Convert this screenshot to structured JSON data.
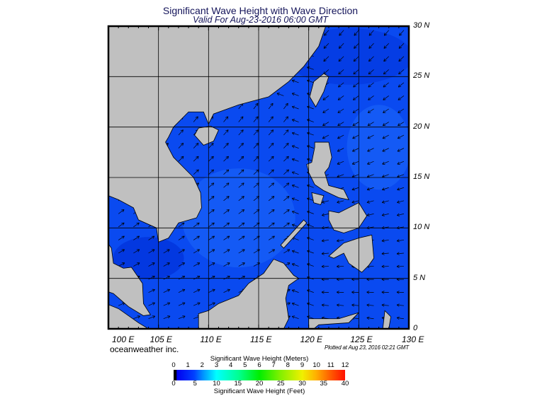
{
  "header": {
    "title": "Significant Wave Height with Wave Direction",
    "subtitle": "Valid For Aug-23-2016 06:00 GMT"
  },
  "map": {
    "lon_range": [
      100,
      130
    ],
    "lat_range": [
      0,
      30
    ],
    "lat_labels": [
      "30 N",
      "25 N",
      "20 N",
      "15 N",
      "10 N",
      "5 N",
      "0"
    ],
    "lon_labels": [
      "100 E",
      "105 E",
      "110 E",
      "115 E",
      "120 E",
      "125 E",
      "130 E"
    ],
    "colors": {
      "land": "#c0c0c0",
      "ocean": "#0a4af0",
      "ocean_dark": "#0030d8",
      "ocean_light": "#1a66f8",
      "grid": "#000000"
    }
  },
  "footer": {
    "credit": "oceanweather inc.",
    "plotted": "Plotted at Aug 23, 2016 02:21 GMT"
  },
  "colorbar": {
    "title_meters": "Significant Wave Height (Meters)",
    "title_feet": "Significant Wave Height (Feet)",
    "meters_ticks": [
      "0",
      "1",
      "2",
      "3",
      "4",
      "5",
      "6",
      "7",
      "8",
      "9",
      "10",
      "11",
      "12"
    ],
    "feet_ticks": [
      "0",
      "5",
      "10",
      "15",
      "20",
      "25",
      "30",
      "35",
      "40"
    ],
    "range_meters": [
      0,
      12
    ]
  }
}
